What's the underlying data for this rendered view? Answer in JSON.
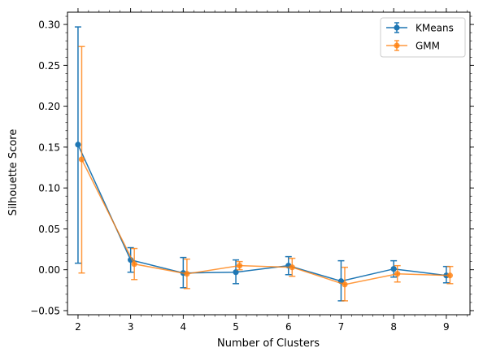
{
  "chart_data": {
    "type": "line",
    "title": "",
    "xlabel": "Number of Clusters",
    "ylabel": "Silhouette Score",
    "xlim": [
      1.8,
      9.45
    ],
    "ylim": [
      -0.055,
      0.315
    ],
    "x_ticks": [
      2,
      3,
      4,
      5,
      6,
      7,
      8,
      9
    ],
    "y_ticks": [
      -0.05,
      0.0,
      0.05,
      0.1,
      0.15,
      0.2,
      0.25,
      0.3
    ],
    "y_tick_labels": [
      "−0.05",
      "0.00",
      "0.05",
      "0.10",
      "0.15",
      "0.20",
      "0.25",
      "0.30"
    ],
    "grid": false,
    "legend_position": "top-right",
    "series": [
      {
        "name": "KMeans",
        "color": "#1f77b4",
        "x": [
          2,
          3,
          4,
          5,
          6,
          7,
          8,
          9
        ],
        "y": [
          0.153,
          0.012,
          -0.004,
          -0.003,
          0.005,
          -0.014,
          0.001,
          -0.007
        ],
        "err_low": [
          0.008,
          -0.003,
          -0.022,
          -0.017,
          -0.006,
          -0.038,
          -0.009,
          -0.016
        ],
        "err_high": [
          0.297,
          0.027,
          0.015,
          0.012,
          0.016,
          0.011,
          0.011,
          0.004
        ]
      },
      {
        "name": "GMM",
        "color": "#ff7f0e",
        "x": [
          2,
          3,
          4,
          5,
          6,
          7,
          8,
          9
        ],
        "y": [
          0.135,
          0.007,
          -0.005,
          0.005,
          0.003,
          -0.018,
          -0.005,
          -0.007
        ],
        "err_low": [
          -0.004,
          -0.012,
          -0.023,
          0.0,
          -0.008,
          -0.038,
          -0.015,
          -0.017
        ],
        "err_high": [
          0.273,
          0.026,
          0.013,
          0.01,
          0.014,
          0.003,
          0.005,
          0.004
        ]
      }
    ]
  }
}
